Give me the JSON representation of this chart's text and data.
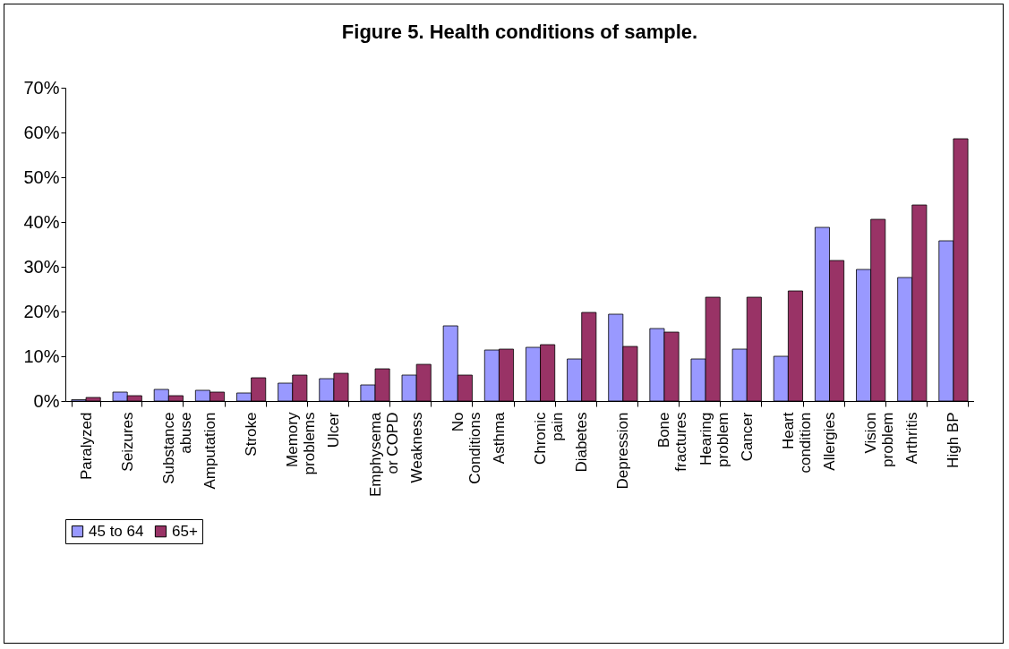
{
  "chart_data": {
    "type": "bar",
    "title": "Figure 5. Health conditions of sample.",
    "categories": [
      "Paralyzed",
      "Seizures",
      "Substance abuse",
      "Amputation",
      "Stroke",
      "Memory problems",
      "Ulcer",
      "Emphysema or COPD",
      "Weakness",
      "No Conditions",
      "Asthma",
      "Chronic pain",
      "Diabetes",
      "Depression",
      "Bone fractures",
      "Hearing problem",
      "Cancer",
      "Heart condition",
      "Allergies",
      "Vision problem",
      "Arthritis",
      "High BP"
    ],
    "series": [
      {
        "name": "45 to 64",
        "color": "#9999ff",
        "values": [
          0.3,
          2.0,
          2.6,
          2.4,
          1.8,
          4.0,
          5.0,
          3.6,
          5.8,
          16.8,
          11.4,
          12.0,
          9.4,
          19.4,
          16.2,
          9.4,
          11.6,
          10.0,
          38.8,
          29.4,
          27.6,
          35.8
        ]
      },
      {
        "name": "65+",
        "color": "#993366",
        "values": [
          0.8,
          1.2,
          1.2,
          2.0,
          5.2,
          5.8,
          6.2,
          7.2,
          8.2,
          5.8,
          11.6,
          12.6,
          19.8,
          12.2,
          15.4,
          23.2,
          23.2,
          24.6,
          31.4,
          40.6,
          43.8,
          58.6
        ]
      }
    ],
    "ylim": [
      0,
      70
    ],
    "yticks": [
      {
        "value": 0,
        "label": "0%"
      },
      {
        "value": 10,
        "label": "10%"
      },
      {
        "value": 20,
        "label": "20%"
      },
      {
        "value": 30,
        "label": "30%"
      },
      {
        "value": 40,
        "label": "40%"
      },
      {
        "value": 50,
        "label": "50%"
      },
      {
        "value": 60,
        "label": "60%"
      },
      {
        "value": 70,
        "label": "70%"
      }
    ],
    "grid": false,
    "legend": "bottom"
  }
}
